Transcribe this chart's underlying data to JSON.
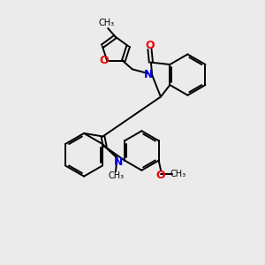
{
  "bg_color": "#ebebeb",
  "bond_color": "#000000",
  "bond_width": 1.4,
  "N_color": "#0000ee",
  "O_color": "#ee0000",
  "font_size": 8,
  "figsize": [
    3.0,
    3.0
  ],
  "dpi": 100,
  "xlim": [
    0,
    10
  ],
  "ylim": [
    0,
    10
  ]
}
